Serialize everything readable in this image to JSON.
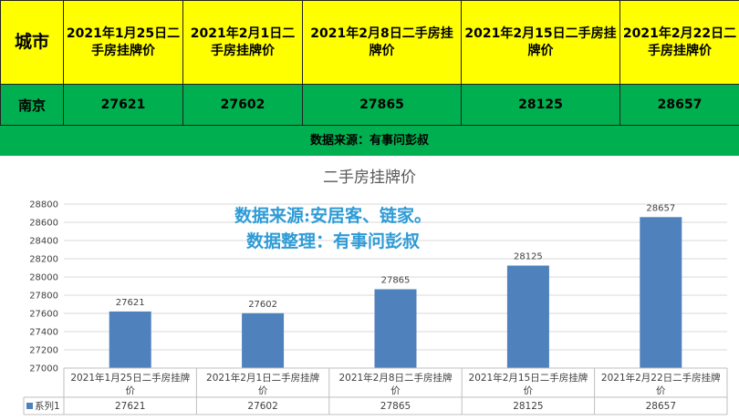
{
  "table": {
    "city_header": "城市",
    "date_headers": [
      "2021年1月25日二手房挂牌价",
      "2021年2月1日二手房挂牌价",
      "2021年2月8日二手房挂牌价",
      "2021年2月15日二手房挂牌价",
      "2021年2月22日二手房挂牌价"
    ],
    "row_city": "南京",
    "row_values": [
      "27621",
      "27602",
      "27865",
      "28125",
      "28657"
    ]
  },
  "source_bar": "数据来源：有事问彭叔",
  "watermark": {
    "line1": "数据来源:安居客、链家。",
    "line2": "数据整理：有事问彭叔"
  },
  "colors": {
    "yellow": "#ffff00",
    "green": "#00b050",
    "bar": "#4f81bd",
    "watermark": "#2e9bd6"
  },
  "chart_data": {
    "type": "bar",
    "title": "二手房挂牌价",
    "categories": [
      "2021年1月25日二手房挂牌价",
      "2021年2月1日二手房挂牌价",
      "2021年2月8日二手房挂牌价",
      "2021年2月15日二手房挂牌价",
      "2021年2月22日二手房挂牌价"
    ],
    "series": [
      {
        "name": "系列1",
        "values": [
          27621,
          27602,
          27865,
          28125,
          28657
        ]
      }
    ],
    "ylim": [
      27000,
      28800
    ],
    "yticks": [
      27000,
      27200,
      27400,
      27600,
      27800,
      28000,
      28200,
      28400,
      28600,
      28800
    ],
    "grid": true,
    "data_table": true,
    "data_labels": true
  }
}
